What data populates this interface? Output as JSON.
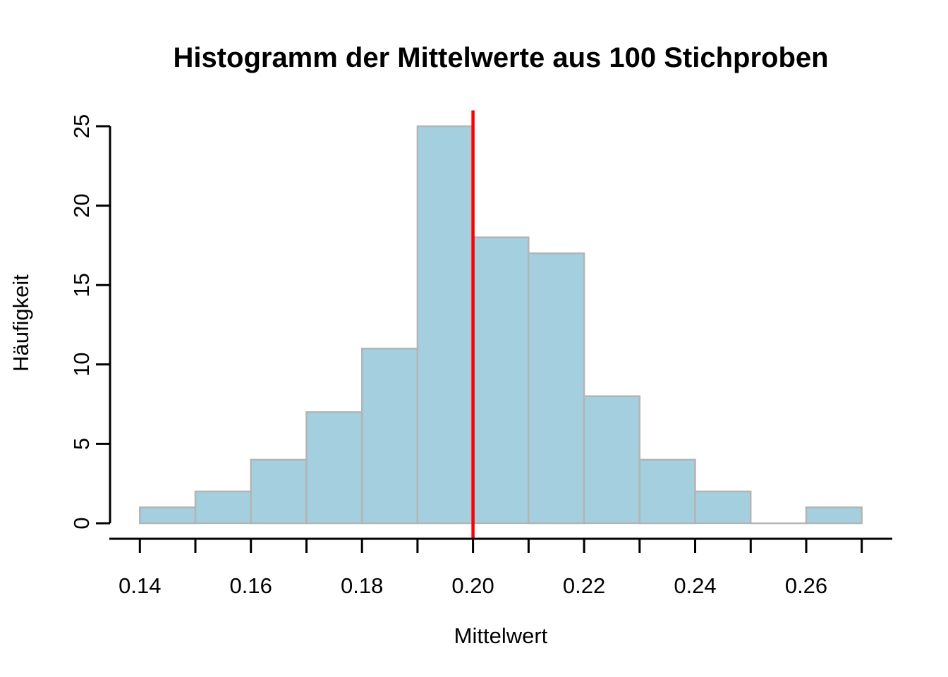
{
  "chart_data": {
    "type": "bar",
    "subtype": "histogram",
    "title": "Histogramm der Mittelwerte aus 100 Stichproben",
    "xlabel": "Mittelwert",
    "ylabel": "Häufigkeit",
    "bin_breaks": [
      0.14,
      0.15,
      0.16,
      0.17,
      0.18,
      0.19,
      0.2,
      0.21,
      0.22,
      0.23,
      0.24,
      0.25,
      0.26,
      0.27
    ],
    "counts": [
      1,
      2,
      4,
      7,
      11,
      25,
      18,
      17,
      8,
      4,
      2,
      0,
      1
    ],
    "total_samples": 100,
    "x_ticks": [
      0.14,
      0.15,
      0.16,
      0.17,
      0.18,
      0.19,
      0.2,
      0.21,
      0.22,
      0.23,
      0.24,
      0.25,
      0.26,
      0.27
    ],
    "x_tick_labels": [
      {
        "value": 0.14,
        "text": "0.14"
      },
      {
        "value": 0.16,
        "text": "0.16"
      },
      {
        "value": 0.18,
        "text": "0.18"
      },
      {
        "value": 0.2,
        "text": "0.20"
      },
      {
        "value": 0.22,
        "text": "0.22"
      },
      {
        "value": 0.24,
        "text": "0.24"
      },
      {
        "value": 0.26,
        "text": "0.26"
      }
    ],
    "y_ticks": [
      0,
      5,
      10,
      15,
      20,
      25
    ],
    "ylim": [
      0,
      25
    ],
    "xlim": [
      0.14,
      0.27
    ],
    "grid": false,
    "legend": null,
    "vline": {
      "x": 0.2,
      "color": "#ff0000"
    },
    "colors": {
      "bar_fill": "#a3cfdf",
      "bar_border": "#b4b4b4",
      "axis": "#000000",
      "text": "#000000"
    }
  }
}
